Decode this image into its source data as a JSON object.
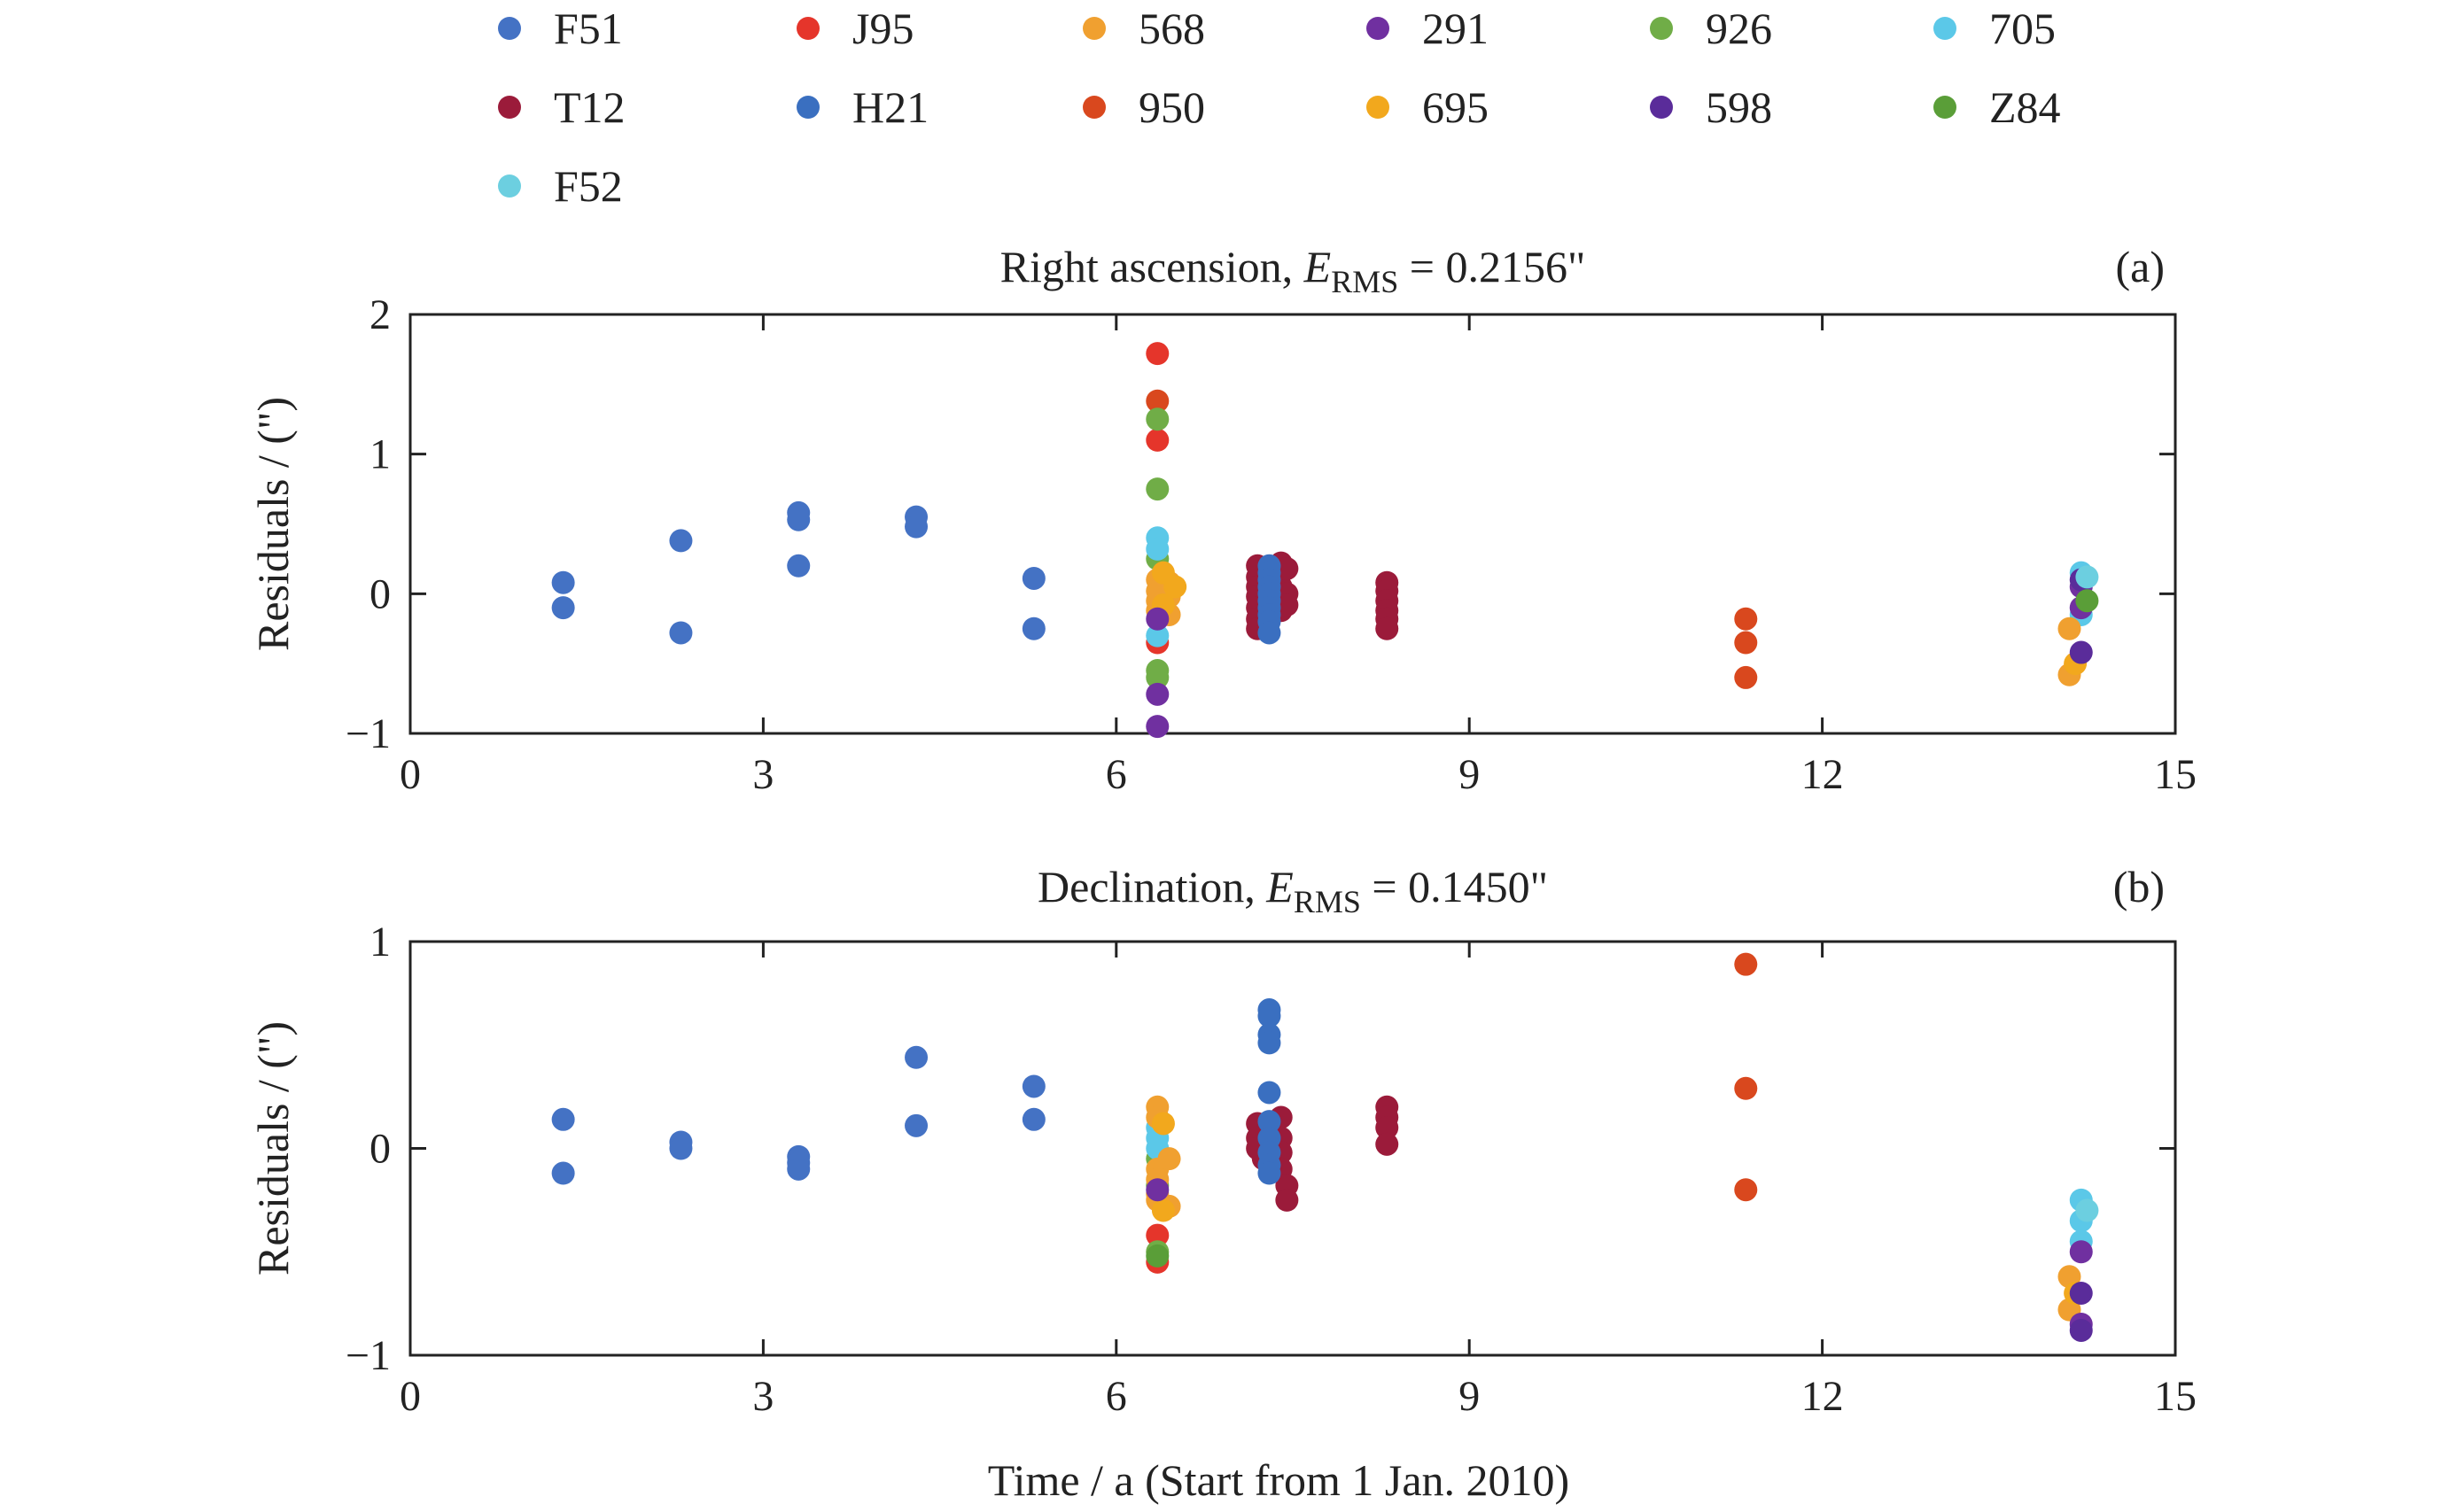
{
  "legend": [
    {
      "name": "F51",
      "color": "#4472c4"
    },
    {
      "name": "J95",
      "color": "#e5352b"
    },
    {
      "name": "568",
      "color": "#f0a030"
    },
    {
      "name": "291",
      "color": "#7030a0"
    },
    {
      "name": "926",
      "color": "#70ad47"
    },
    {
      "name": "705",
      "color": "#5bc8e8"
    },
    {
      "name": "T12",
      "color": "#9b1b3a"
    },
    {
      "name": "H21",
      "color": "#3a6fc0"
    },
    {
      "name": "950",
      "color": "#d9481e"
    },
    {
      "name": "695",
      "color": "#f2a81d"
    },
    {
      "name": "598",
      "color": "#5a2c9a"
    },
    {
      "name": "Z84",
      "color": "#5a9e38"
    },
    {
      "name": "F52",
      "color": "#6ccfe0"
    }
  ],
  "xlabel": "Time / a (Start from 1 Jan. 2010)",
  "chart_data": [
    {
      "type": "scatter",
      "panel": "(a)",
      "title_main": "Right ascension, ",
      "title_var": "E",
      "title_sub": "RMS",
      "title_tail": " = 0.2156\"",
      "ylabel": "Residuals / (\")",
      "xlim": [
        0,
        15
      ],
      "ylim": [
        -1,
        2
      ],
      "xticks": [
        "0",
        "3",
        "6",
        "9",
        "12",
        "15"
      ],
      "yticks": [
        "−1",
        "0",
        "1",
        "2"
      ],
      "series": [
        {
          "name": "F51",
          "points": [
            [
              1.3,
              0.08
            ],
            [
              1.3,
              -0.1
            ],
            [
              2.3,
              0.38
            ],
            [
              2.3,
              -0.28
            ],
            [
              3.3,
              0.58
            ],
            [
              3.3,
              0.53
            ],
            [
              3.3,
              0.2
            ],
            [
              4.3,
              0.55
            ],
            [
              4.3,
              0.48
            ],
            [
              5.3,
              0.11
            ],
            [
              5.3,
              -0.25
            ]
          ]
        },
        {
          "name": "J95",
          "points": [
            [
              6.35,
              1.72
            ],
            [
              6.35,
              1.1
            ],
            [
              6.35,
              -0.35
            ]
          ]
        },
        {
          "name": "950",
          "points": [
            [
              6.35,
              1.38
            ],
            [
              11.35,
              -0.18
            ],
            [
              11.35,
              -0.35
            ],
            [
              11.35,
              -0.6
            ]
          ]
        },
        {
          "name": "926",
          "points": [
            [
              6.35,
              1.25
            ],
            [
              6.35,
              0.75
            ],
            [
              6.35,
              0.25
            ],
            [
              6.35,
              -0.55
            ],
            [
              6.35,
              -0.6
            ]
          ]
        },
        {
          "name": "705",
          "points": [
            [
              6.35,
              0.4
            ],
            [
              6.35,
              0.32
            ],
            [
              6.35,
              -0.3
            ],
            [
              14.2,
              0.15
            ],
            [
              14.2,
              -0.15
            ]
          ]
        },
        {
          "name": "568",
          "points": [
            [
              6.35,
              0.1
            ],
            [
              6.35,
              0.02
            ],
            [
              6.35,
              -0.05
            ],
            [
              6.35,
              -0.12
            ],
            [
              6.45,
              0.08
            ],
            [
              6.45,
              -0.02
            ],
            [
              6.45,
              -0.15
            ],
            [
              14.1,
              -0.25
            ],
            [
              14.1,
              -0.58
            ]
          ]
        },
        {
          "name": "695",
          "points": [
            [
              6.4,
              0.15
            ],
            [
              6.4,
              -0.08
            ],
            [
              6.5,
              0.05
            ],
            [
              14.15,
              -0.5
            ]
          ]
        },
        {
          "name": "291",
          "points": [
            [
              6.35,
              -0.18
            ],
            [
              6.35,
              -0.72
            ],
            [
              6.35,
              -0.95
            ],
            [
              14.2,
              0.05
            ],
            [
              14.2,
              -0.1
            ]
          ]
        },
        {
          "name": "598",
          "points": [
            [
              14.2,
              0.1
            ],
            [
              14.2,
              -0.42
            ]
          ]
        },
        {
          "name": "T12",
          "points": [
            [
              7.2,
              0.2
            ],
            [
              7.2,
              0.12
            ],
            [
              7.2,
              0.05
            ],
            [
              7.2,
              -0.02
            ],
            [
              7.2,
              -0.1
            ],
            [
              7.2,
              -0.18
            ],
            [
              7.2,
              -0.25
            ],
            [
              7.4,
              0.22
            ],
            [
              7.4,
              0.15
            ],
            [
              7.4,
              0.05
            ],
            [
              7.4,
              -0.05
            ],
            [
              7.4,
              -0.12
            ],
            [
              7.45,
              0.18
            ],
            [
              7.45,
              0.0
            ],
            [
              7.45,
              -0.08
            ],
            [
              8.3,
              0.08
            ],
            [
              8.3,
              0.02
            ],
            [
              8.3,
              -0.05
            ],
            [
              8.3,
              -0.12
            ],
            [
              8.3,
              -0.18
            ],
            [
              8.3,
              -0.25
            ]
          ]
        },
        {
          "name": "H21",
          "points": [
            [
              7.3,
              0.2
            ],
            [
              7.3,
              0.15
            ],
            [
              7.3,
              0.1
            ],
            [
              7.3,
              0.05
            ],
            [
              7.3,
              0.0
            ],
            [
              7.3,
              -0.05
            ],
            [
              7.3,
              -0.1
            ],
            [
              7.3,
              -0.15
            ],
            [
              7.3,
              -0.2
            ],
            [
              7.3,
              -0.28
            ]
          ]
        },
        {
          "name": "Z84",
          "points": [
            [
              14.25,
              -0.05
            ]
          ]
        },
        {
          "name": "F52",
          "points": [
            [
              14.25,
              0.12
            ]
          ]
        }
      ]
    },
    {
      "type": "scatter",
      "panel": "(b)",
      "title_main": "Declination, ",
      "title_var": "E",
      "title_sub": "RMS",
      "title_tail": " = 0.1450\"",
      "ylabel": "Residuals / (\")",
      "xlim": [
        0,
        15
      ],
      "ylim": [
        -1,
        1
      ],
      "xticks": [
        "0",
        "3",
        "6",
        "9",
        "12",
        "15"
      ],
      "yticks": [
        "−1",
        "0",
        "1"
      ],
      "series": [
        {
          "name": "F51",
          "points": [
            [
              1.3,
              0.14
            ],
            [
              1.3,
              -0.12
            ],
            [
              2.3,
              0.03
            ],
            [
              2.3,
              0.0
            ],
            [
              3.3,
              -0.04
            ],
            [
              3.3,
              -0.07
            ],
            [
              3.3,
              -0.1
            ],
            [
              4.3,
              0.44
            ],
            [
              4.3,
              0.11
            ],
            [
              5.3,
              0.3
            ],
            [
              5.3,
              0.14
            ]
          ]
        },
        {
          "name": "J95",
          "points": [
            [
              6.35,
              -0.42
            ],
            [
              6.35,
              -0.55
            ]
          ]
        },
        {
          "name": "950",
          "points": [
            [
              11.35,
              0.89
            ],
            [
              11.35,
              0.29
            ],
            [
              11.35,
              -0.2
            ]
          ]
        },
        {
          "name": "926",
          "points": [
            [
              6.35,
              -0.05
            ],
            [
              6.35,
              -0.18
            ],
            [
              6.35,
              -0.5
            ]
          ]
        },
        {
          "name": "705",
          "points": [
            [
              6.35,
              0.1
            ],
            [
              6.35,
              0.05
            ],
            [
              6.35,
              0.0
            ],
            [
              14.2,
              -0.25
            ],
            [
              14.2,
              -0.35
            ],
            [
              14.2,
              -0.45
            ]
          ]
        },
        {
          "name": "568",
          "points": [
            [
              6.35,
              0.2
            ],
            [
              6.35,
              0.15
            ],
            [
              6.35,
              -0.1
            ],
            [
              6.35,
              -0.15
            ],
            [
              6.35,
              -0.22
            ],
            [
              6.35,
              -0.25
            ],
            [
              6.45,
              -0.05
            ],
            [
              6.45,
              -0.28
            ],
            [
              14.1,
              -0.62
            ],
            [
              14.1,
              -0.78
            ]
          ]
        },
        {
          "name": "695",
          "points": [
            [
              6.4,
              0.12
            ],
            [
              6.4,
              -0.3
            ],
            [
              14.15,
              -0.7
            ]
          ]
        },
        {
          "name": "291",
          "points": [
            [
              6.35,
              -0.2
            ],
            [
              14.2,
              -0.5
            ],
            [
              14.2,
              -0.85
            ]
          ]
        },
        {
          "name": "598",
          "points": [
            [
              14.2,
              -0.7
            ],
            [
              14.2,
              -0.88
            ]
          ]
        },
        {
          "name": "T12",
          "points": [
            [
              7.2,
              0.12
            ],
            [
              7.2,
              0.05
            ],
            [
              7.2,
              0.0
            ],
            [
              7.25,
              -0.05
            ],
            [
              7.4,
              0.15
            ],
            [
              7.4,
              0.05
            ],
            [
              7.4,
              -0.02
            ],
            [
              7.4,
              -0.1
            ],
            [
              7.45,
              -0.18
            ],
            [
              7.45,
              -0.25
            ],
            [
              8.3,
              0.2
            ],
            [
              8.3,
              0.15
            ],
            [
              8.3,
              0.1
            ],
            [
              8.3,
              0.02
            ]
          ]
        },
        {
          "name": "H21",
          "points": [
            [
              7.3,
              0.67
            ],
            [
              7.3,
              0.64
            ],
            [
              7.3,
              0.55
            ],
            [
              7.3,
              0.51
            ],
            [
              7.3,
              0.27
            ],
            [
              7.3,
              0.13
            ],
            [
              7.3,
              0.05
            ],
            [
              7.3,
              -0.02
            ],
            [
              7.3,
              -0.08
            ],
            [
              7.3,
              -0.12
            ]
          ]
        },
        {
          "name": "Z84",
          "points": [
            [
              6.35,
              -0.52
            ]
          ]
        },
        {
          "name": "F52",
          "points": [
            [
              14.25,
              -0.3
            ]
          ]
        }
      ]
    }
  ]
}
